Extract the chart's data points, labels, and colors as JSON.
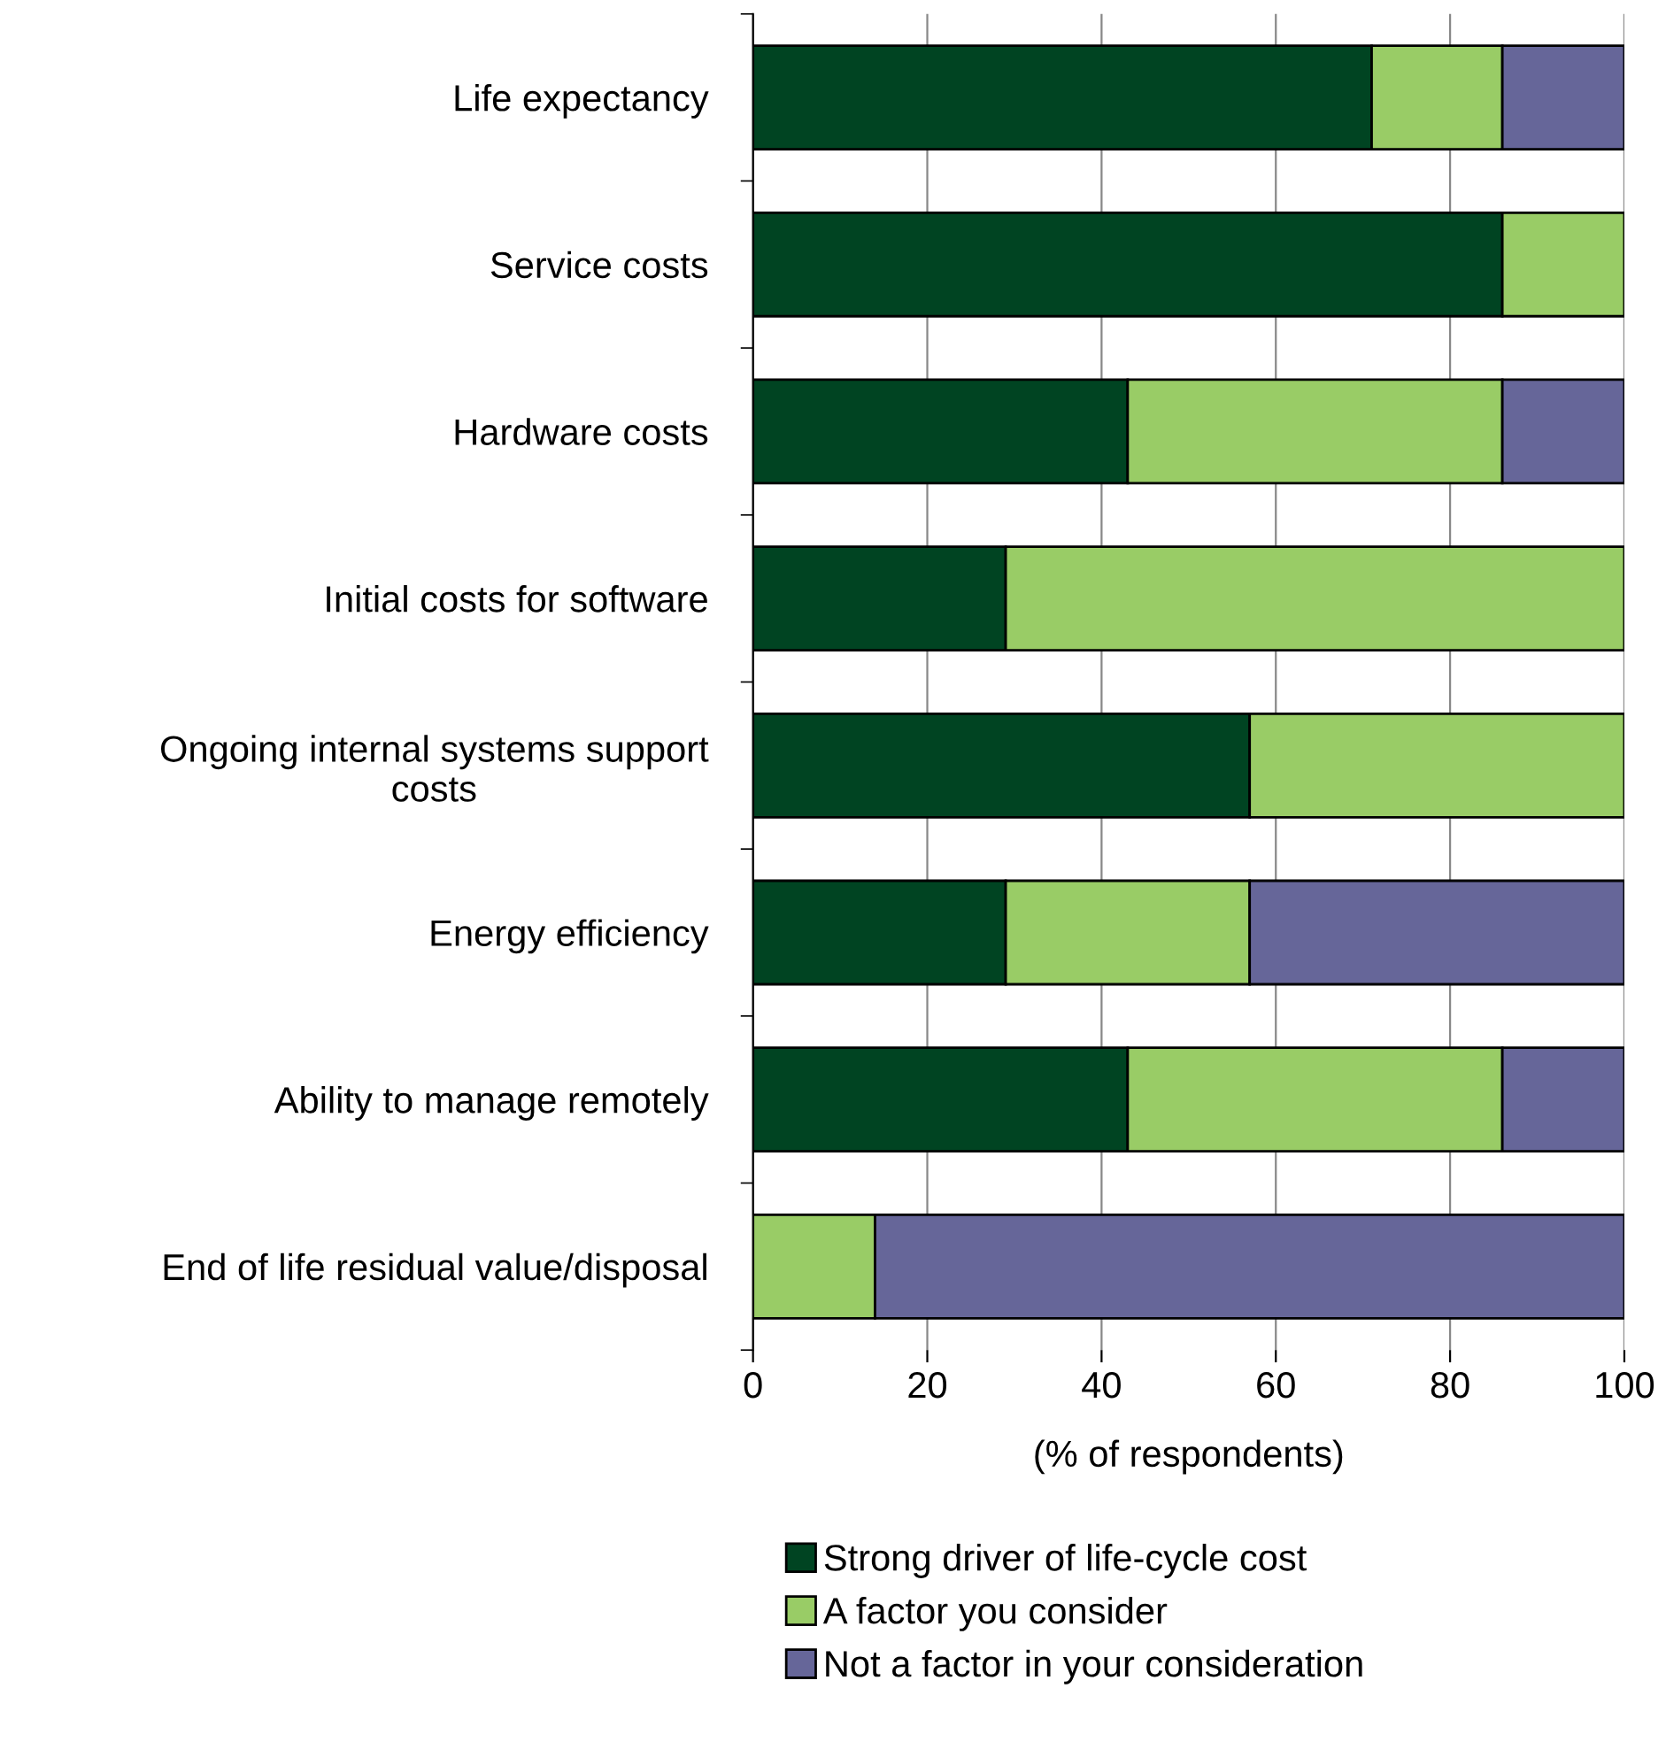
{
  "chart_data": {
    "type": "bar",
    "orientation": "horizontal",
    "stacked": true,
    "xlabel": "(% of respondents)",
    "categories": [
      "Life expectancy",
      "Service costs",
      "Hardware costs",
      "Initial costs for software",
      "Ongoing internal systems support\ncosts",
      "Energy efficiency",
      "Ability to manage remotely",
      "End of life residual value/disposal"
    ],
    "series": [
      {
        "name": "Strong driver of life-cycle cost",
        "color": "#004422",
        "values": [
          71,
          86,
          43,
          29,
          57,
          29,
          43,
          null
        ]
      },
      {
        "name": "A factor you consider",
        "color": "#99cc66",
        "values": [
          15,
          14,
          43,
          71,
          43,
          28,
          43,
          14
        ]
      },
      {
        "name": "Not a factor in your consideration",
        "color": "#666699",
        "values": [
          14,
          null,
          14,
          null,
          null,
          43,
          14,
          86
        ]
      }
    ],
    "xlim": [
      0,
      100
    ],
    "xticks": [
      0,
      20,
      40,
      60,
      80,
      100
    ],
    "grid": "x",
    "legend": "bottom"
  }
}
